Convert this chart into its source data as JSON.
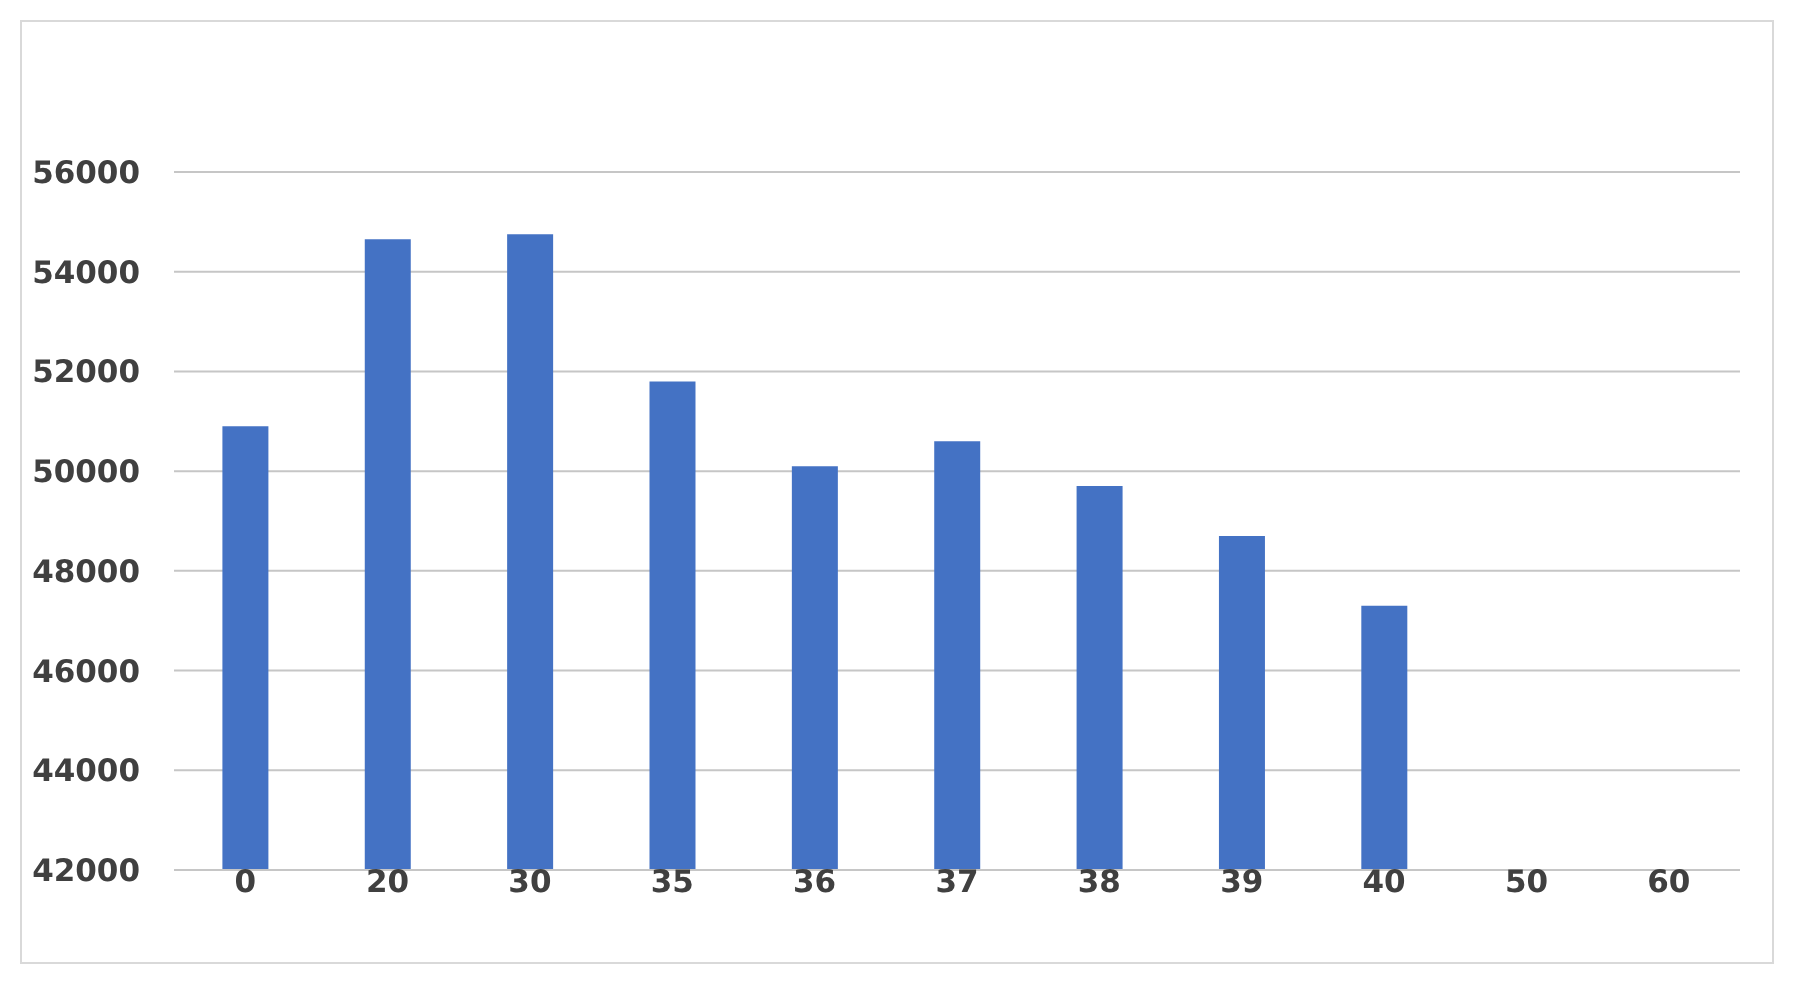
{
  "chart_data": {
    "type": "bar",
    "categories": [
      "0",
      "20",
      "30",
      "35",
      "36",
      "37",
      "38",
      "39",
      "40",
      "50",
      "60"
    ],
    "values": [
      50900,
      54650,
      54750,
      51800,
      50100,
      50600,
      49700,
      48700,
      47300,
      null,
      null
    ],
    "color": "#4472c4",
    "ylim": [
      42000,
      56000
    ],
    "yticks": [
      42000,
      44000,
      46000,
      48000,
      50000,
      52000,
      54000,
      56000
    ],
    "grid": "y"
  }
}
